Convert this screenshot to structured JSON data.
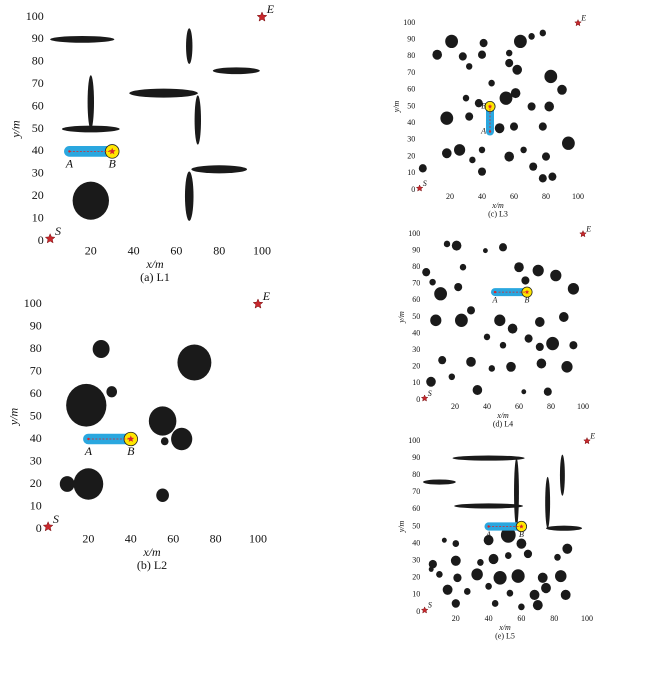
{
  "chart_data": [
    {
      "type": "map",
      "caption": "(a) L1",
      "xlabel": "x/m",
      "ylabel": "y/m",
      "xlim": [
        0,
        100
      ],
      "ylim": [
        0,
        100
      ],
      "xticks": [
        20,
        40,
        60,
        80,
        100
      ],
      "yticks": [
        0,
        10,
        20,
        30,
        40,
        50,
        60,
        70,
        80,
        90,
        100
      ],
      "start": {
        "label": "S",
        "x": 1,
        "y": 1
      },
      "end": {
        "label": "E",
        "x": 100,
        "y": 100
      },
      "points": [
        {
          "label": "A",
          "x": 10,
          "y": 40
        },
        {
          "label": "B",
          "x": 30,
          "y": 40
        }
      ],
      "obstacles": [
        {
          "x": 16,
          "y": 90,
          "rx": 15,
          "ry": 1.5
        },
        {
          "x": 20,
          "y": 62,
          "rx": 1.5,
          "ry": 12
        },
        {
          "x": 20,
          "y": 50,
          "rx": 13.5,
          "ry": 1.5
        },
        {
          "x": 66,
          "y": 87,
          "rx": 1.5,
          "ry": 8
        },
        {
          "x": 54,
          "y": 66,
          "rx": 16,
          "ry": 2
        },
        {
          "x": 70,
          "y": 54,
          "rx": 1.5,
          "ry": 11
        },
        {
          "x": 88,
          "y": 76,
          "rx": 11,
          "ry": 1.5
        },
        {
          "x": 80,
          "y": 32,
          "rx": 13,
          "ry": 1.8
        },
        {
          "x": 66,
          "y": 20,
          "rx": 2,
          "ry": 11
        },
        {
          "x": 20,
          "y": 18,
          "rx": 8.5,
          "ry": 8.5
        }
      ]
    },
    {
      "type": "map",
      "caption": "(b) L2",
      "xlabel": "x/m",
      "ylabel": "y/m",
      "xlim": [
        0,
        100
      ],
      "ylim": [
        0,
        100
      ],
      "xticks": [
        20,
        40,
        60,
        80,
        100
      ],
      "yticks": [
        0,
        10,
        20,
        30,
        40,
        50,
        60,
        70,
        80,
        90,
        100
      ],
      "start": {
        "label": "S",
        "x": 1,
        "y": 1
      },
      "end": {
        "label": "E",
        "x": 100,
        "y": 100
      },
      "points": [
        {
          "label": "A",
          "x": 20,
          "y": 40
        },
        {
          "label": "B",
          "x": 40,
          "y": 40
        }
      ],
      "obstacles": [
        {
          "x": 26,
          "y": 80,
          "rx": 4,
          "ry": 4
        },
        {
          "x": 70,
          "y": 74,
          "rx": 8,
          "ry": 8
        },
        {
          "x": 31,
          "y": 61,
          "rx": 2.5,
          "ry": 2.5
        },
        {
          "x": 19,
          "y": 55,
          "rx": 9.5,
          "ry": 9.5
        },
        {
          "x": 55,
          "y": 48,
          "rx": 6.5,
          "ry": 6.5
        },
        {
          "x": 56,
          "y": 39,
          "rx": 1.8,
          "ry": 1.8
        },
        {
          "x": 64,
          "y": 40,
          "rx": 5,
          "ry": 5
        },
        {
          "x": 10,
          "y": 20,
          "rx": 3.5,
          "ry": 3.5
        },
        {
          "x": 20,
          "y": 20,
          "rx": 7,
          "ry": 7
        },
        {
          "x": 55,
          "y": 15,
          "rx": 3,
          "ry": 3
        }
      ]
    },
    {
      "type": "map",
      "caption": "(c) L3",
      "xlabel": "x/m",
      "ylabel": "y/m",
      "xlim": [
        0,
        100
      ],
      "ylim": [
        0,
        100
      ],
      "xticks": [
        20,
        40,
        60,
        80,
        100
      ],
      "yticks": [
        0,
        10,
        20,
        30,
        40,
        50,
        60,
        70,
        80,
        90,
        100
      ],
      "start": {
        "label": "S",
        "x": 1,
        "y": 1
      },
      "end": {
        "label": "E",
        "x": 100,
        "y": 100
      },
      "points": [
        {
          "label": "A",
          "x": 45,
          "y": 35
        },
        {
          "label": "B",
          "x": 45,
          "y": 50
        }
      ],
      "obstacles": [
        {
          "x": 21,
          "y": 89,
          "rx": 4,
          "ry": 4
        },
        {
          "x": 12,
          "y": 81,
          "rx": 3,
          "ry": 3
        },
        {
          "x": 28,
          "y": 80,
          "rx": 2.5,
          "ry": 2.5
        },
        {
          "x": 41,
          "y": 88,
          "rx": 2.5,
          "ry": 2.5
        },
        {
          "x": 40,
          "y": 81,
          "rx": 2.5,
          "ry": 2.5
        },
        {
          "x": 64,
          "y": 89,
          "rx": 4,
          "ry": 4
        },
        {
          "x": 57,
          "y": 82,
          "rx": 2,
          "ry": 2
        },
        {
          "x": 71,
          "y": 92,
          "rx": 2,
          "ry": 2
        },
        {
          "x": 78,
          "y": 94,
          "rx": 2,
          "ry": 2
        },
        {
          "x": 62,
          "y": 72,
          "rx": 3,
          "ry": 3
        },
        {
          "x": 46,
          "y": 64,
          "rx": 2,
          "ry": 2
        },
        {
          "x": 57,
          "y": 76,
          "rx": 2.5,
          "ry": 2.5
        },
        {
          "x": 32,
          "y": 74,
          "rx": 2,
          "ry": 2
        },
        {
          "x": 83,
          "y": 68,
          "rx": 4,
          "ry": 4
        },
        {
          "x": 30,
          "y": 55,
          "rx": 2,
          "ry": 2
        },
        {
          "x": 38,
          "y": 52,
          "rx": 2.5,
          "ry": 2.5
        },
        {
          "x": 61,
          "y": 58,
          "rx": 3,
          "ry": 3
        },
        {
          "x": 55,
          "y": 55,
          "rx": 4,
          "ry": 4
        },
        {
          "x": 90,
          "y": 60,
          "rx": 3,
          "ry": 3
        },
        {
          "x": 82,
          "y": 50,
          "rx": 3,
          "ry": 3
        },
        {
          "x": 71,
          "y": 50,
          "rx": 2.5,
          "ry": 2.5
        },
        {
          "x": 18,
          "y": 43,
          "rx": 4,
          "ry": 4
        },
        {
          "x": 32,
          "y": 44,
          "rx": 2.5,
          "ry": 2.5
        },
        {
          "x": 51,
          "y": 37,
          "rx": 3,
          "ry": 3
        },
        {
          "x": 60,
          "y": 38,
          "rx": 2.5,
          "ry": 2.5
        },
        {
          "x": 78,
          "y": 38,
          "rx": 2.5,
          "ry": 2.5
        },
        {
          "x": 94,
          "y": 28,
          "rx": 4,
          "ry": 4
        },
        {
          "x": 26,
          "y": 24,
          "rx": 3.5,
          "ry": 3.5
        },
        {
          "x": 18,
          "y": 22,
          "rx": 3,
          "ry": 3
        },
        {
          "x": 40,
          "y": 24,
          "rx": 2,
          "ry": 2
        },
        {
          "x": 57,
          "y": 20,
          "rx": 3,
          "ry": 3
        },
        {
          "x": 66,
          "y": 24,
          "rx": 2,
          "ry": 2
        },
        {
          "x": 80,
          "y": 20,
          "rx": 2.5,
          "ry": 2.5
        },
        {
          "x": 72,
          "y": 14,
          "rx": 2.5,
          "ry": 2.5
        },
        {
          "x": 40,
          "y": 11,
          "rx": 2.5,
          "ry": 2.5
        },
        {
          "x": 84,
          "y": 8,
          "rx": 2.5,
          "ry": 2.5
        },
        {
          "x": 78,
          "y": 7,
          "rx": 2.5,
          "ry": 2.5
        },
        {
          "x": 3,
          "y": 13,
          "rx": 2.5,
          "ry": 2.5
        },
        {
          "x": 34,
          "y": 18,
          "rx": 2,
          "ry": 2
        }
      ]
    },
    {
      "type": "map",
      "caption": "(d) L4",
      "xlabel": "x/m",
      "ylabel": "y/m",
      "xlim": [
        0,
        100
      ],
      "ylim": [
        0,
        100
      ],
      "xticks": [
        20,
        40,
        60,
        80,
        100
      ],
      "yticks": [
        0,
        10,
        20,
        30,
        40,
        50,
        60,
        70,
        80,
        90,
        100
      ],
      "start": {
        "label": "S",
        "x": 1,
        "y": 1
      },
      "end": {
        "label": "E",
        "x": 100,
        "y": 100
      },
      "points": [
        {
          "label": "A",
          "x": 45,
          "y": 65
        },
        {
          "label": "B",
          "x": 65,
          "y": 65
        }
      ],
      "obstacles": [
        {
          "x": 15,
          "y": 94,
          "rx": 2,
          "ry": 2
        },
        {
          "x": 21,
          "y": 93,
          "rx": 3,
          "ry": 3
        },
        {
          "x": 50,
          "y": 92,
          "rx": 2.5,
          "ry": 2.5
        },
        {
          "x": 2,
          "y": 77,
          "rx": 2.5,
          "ry": 2.5
        },
        {
          "x": 25,
          "y": 80,
          "rx": 2,
          "ry": 2
        },
        {
          "x": 6,
          "y": 71,
          "rx": 2,
          "ry": 2
        },
        {
          "x": 39,
          "y": 90,
          "rx": 1.5,
          "ry": 1.5
        },
        {
          "x": 60,
          "y": 80,
          "rx": 3,
          "ry": 3
        },
        {
          "x": 72,
          "y": 78,
          "rx": 3.5,
          "ry": 3.5
        },
        {
          "x": 83,
          "y": 75,
          "rx": 3.5,
          "ry": 3.5
        },
        {
          "x": 64,
          "y": 72,
          "rx": 2.5,
          "ry": 2.5
        },
        {
          "x": 11,
          "y": 64,
          "rx": 4,
          "ry": 4
        },
        {
          "x": 22,
          "y": 68,
          "rx": 2.5,
          "ry": 2.5
        },
        {
          "x": 94,
          "y": 67,
          "rx": 3.5,
          "ry": 3.5
        },
        {
          "x": 30,
          "y": 54,
          "rx": 2.5,
          "ry": 2.5
        },
        {
          "x": 8,
          "y": 48,
          "rx": 3.5,
          "ry": 3.5
        },
        {
          "x": 24,
          "y": 48,
          "rx": 4,
          "ry": 4
        },
        {
          "x": 48,
          "y": 48,
          "rx": 3.5,
          "ry": 3.5
        },
        {
          "x": 73,
          "y": 47,
          "rx": 3,
          "ry": 3
        },
        {
          "x": 88,
          "y": 50,
          "rx": 3,
          "ry": 3
        },
        {
          "x": 56,
          "y": 43,
          "rx": 3,
          "ry": 3
        },
        {
          "x": 40,
          "y": 38,
          "rx": 2,
          "ry": 2
        },
        {
          "x": 66,
          "y": 37,
          "rx": 2.5,
          "ry": 2.5
        },
        {
          "x": 81,
          "y": 34,
          "rx": 4,
          "ry": 4
        },
        {
          "x": 73,
          "y": 32,
          "rx": 2.5,
          "ry": 2.5
        },
        {
          "x": 94,
          "y": 33,
          "rx": 2.5,
          "ry": 2.5
        },
        {
          "x": 12,
          "y": 24,
          "rx": 2.5,
          "ry": 2.5
        },
        {
          "x": 30,
          "y": 23,
          "rx": 3,
          "ry": 3
        },
        {
          "x": 55,
          "y": 20,
          "rx": 3,
          "ry": 3
        },
        {
          "x": 74,
          "y": 22,
          "rx": 3,
          "ry": 3
        },
        {
          "x": 90,
          "y": 20,
          "rx": 3.5,
          "ry": 3.5
        },
        {
          "x": 18,
          "y": 14,
          "rx": 2,
          "ry": 2
        },
        {
          "x": 5,
          "y": 11,
          "rx": 3,
          "ry": 3
        },
        {
          "x": 34,
          "y": 6,
          "rx": 3,
          "ry": 3
        },
        {
          "x": 63,
          "y": 5,
          "rx": 1.5,
          "ry": 1.5
        },
        {
          "x": 78,
          "y": 5,
          "rx": 2.5,
          "ry": 2.5
        },
        {
          "x": 43,
          "y": 19,
          "rx": 2,
          "ry": 2
        },
        {
          "x": 50,
          "y": 33,
          "rx": 2,
          "ry": 2
        }
      ]
    },
    {
      "type": "map",
      "caption": "(e) L5",
      "xlabel": "x/m",
      "ylabel": "y/m",
      "xlim": [
        0,
        100
      ],
      "ylim": [
        0,
        100
      ],
      "xticks": [
        20,
        40,
        60,
        80,
        100
      ],
      "yticks": [
        0,
        10,
        20,
        30,
        40,
        50,
        60,
        70,
        80,
        90,
        100
      ],
      "start": {
        "label": "S",
        "x": 1,
        "y": 1
      },
      "end": {
        "label": "E",
        "x": 100,
        "y": 100
      },
      "points": [
        {
          "label": "A",
          "x": 40,
          "y": 50
        },
        {
          "label": "B",
          "x": 60,
          "y": 50
        }
      ],
      "obstacles": [
        {
          "x": 40,
          "y": 90,
          "rx": 22,
          "ry": 1.5
        },
        {
          "x": 10,
          "y": 76,
          "rx": 10,
          "ry": 1.5
        },
        {
          "x": 40,
          "y": 62,
          "rx": 21,
          "ry": 1.5
        },
        {
          "x": 57,
          "y": 70,
          "rx": 1.5,
          "ry": 20
        },
        {
          "x": 76,
          "y": 64,
          "rx": 1.5,
          "ry": 15
        },
        {
          "x": 85,
          "y": 80,
          "rx": 1.5,
          "ry": 12
        },
        {
          "x": 86,
          "y": 49,
          "rx": 11,
          "ry": 1.5
        },
        {
          "x": 13,
          "y": 42,
          "rx": 1.5,
          "ry": 1.5
        },
        {
          "x": 20,
          "y": 40,
          "rx": 2,
          "ry": 2
        },
        {
          "x": 40,
          "y": 42,
          "rx": 3,
          "ry": 3
        },
        {
          "x": 52,
          "y": 45,
          "rx": 4.5,
          "ry": 4.5
        },
        {
          "x": 60,
          "y": 40,
          "rx": 3,
          "ry": 3
        },
        {
          "x": 88,
          "y": 37,
          "rx": 3,
          "ry": 3
        },
        {
          "x": 6,
          "y": 28,
          "rx": 2.5,
          "ry": 2.5
        },
        {
          "x": 20,
          "y": 30,
          "rx": 3,
          "ry": 3
        },
        {
          "x": 35,
          "y": 29,
          "rx": 2,
          "ry": 2
        },
        {
          "x": 43,
          "y": 31,
          "rx": 3,
          "ry": 3
        },
        {
          "x": 52,
          "y": 33,
          "rx": 2,
          "ry": 2
        },
        {
          "x": 64,
          "y": 34,
          "rx": 2.5,
          "ry": 2.5
        },
        {
          "x": 82,
          "y": 32,
          "rx": 2,
          "ry": 2
        },
        {
          "x": 10,
          "y": 22,
          "rx": 2,
          "ry": 2
        },
        {
          "x": 21,
          "y": 20,
          "rx": 2.5,
          "ry": 2.5
        },
        {
          "x": 33,
          "y": 22,
          "rx": 3.5,
          "ry": 3.5
        },
        {
          "x": 47,
          "y": 20,
          "rx": 4,
          "ry": 4
        },
        {
          "x": 58,
          "y": 21,
          "rx": 4,
          "ry": 4
        },
        {
          "x": 73,
          "y": 20,
          "rx": 3,
          "ry": 3
        },
        {
          "x": 84,
          "y": 21,
          "rx": 3.5,
          "ry": 3.5
        },
        {
          "x": 15,
          "y": 13,
          "rx": 3,
          "ry": 3
        },
        {
          "x": 27,
          "y": 12,
          "rx": 2,
          "ry": 2
        },
        {
          "x": 40,
          "y": 15,
          "rx": 2,
          "ry": 2
        },
        {
          "x": 53,
          "y": 11,
          "rx": 2,
          "ry": 2
        },
        {
          "x": 68,
          "y": 10,
          "rx": 3,
          "ry": 3
        },
        {
          "x": 75,
          "y": 14,
          "rx": 3,
          "ry": 3
        },
        {
          "x": 87,
          "y": 10,
          "rx": 3,
          "ry": 3
        },
        {
          "x": 20,
          "y": 5,
          "rx": 2.5,
          "ry": 2.5
        },
        {
          "x": 44,
          "y": 5,
          "rx": 2,
          "ry": 2
        },
        {
          "x": 60,
          "y": 3,
          "rx": 2,
          "ry": 2
        },
        {
          "x": 70,
          "y": 4,
          "rx": 3,
          "ry": 3
        },
        {
          "x": 5,
          "y": 25,
          "rx": 1.5,
          "ry": 1.5
        }
      ]
    }
  ]
}
